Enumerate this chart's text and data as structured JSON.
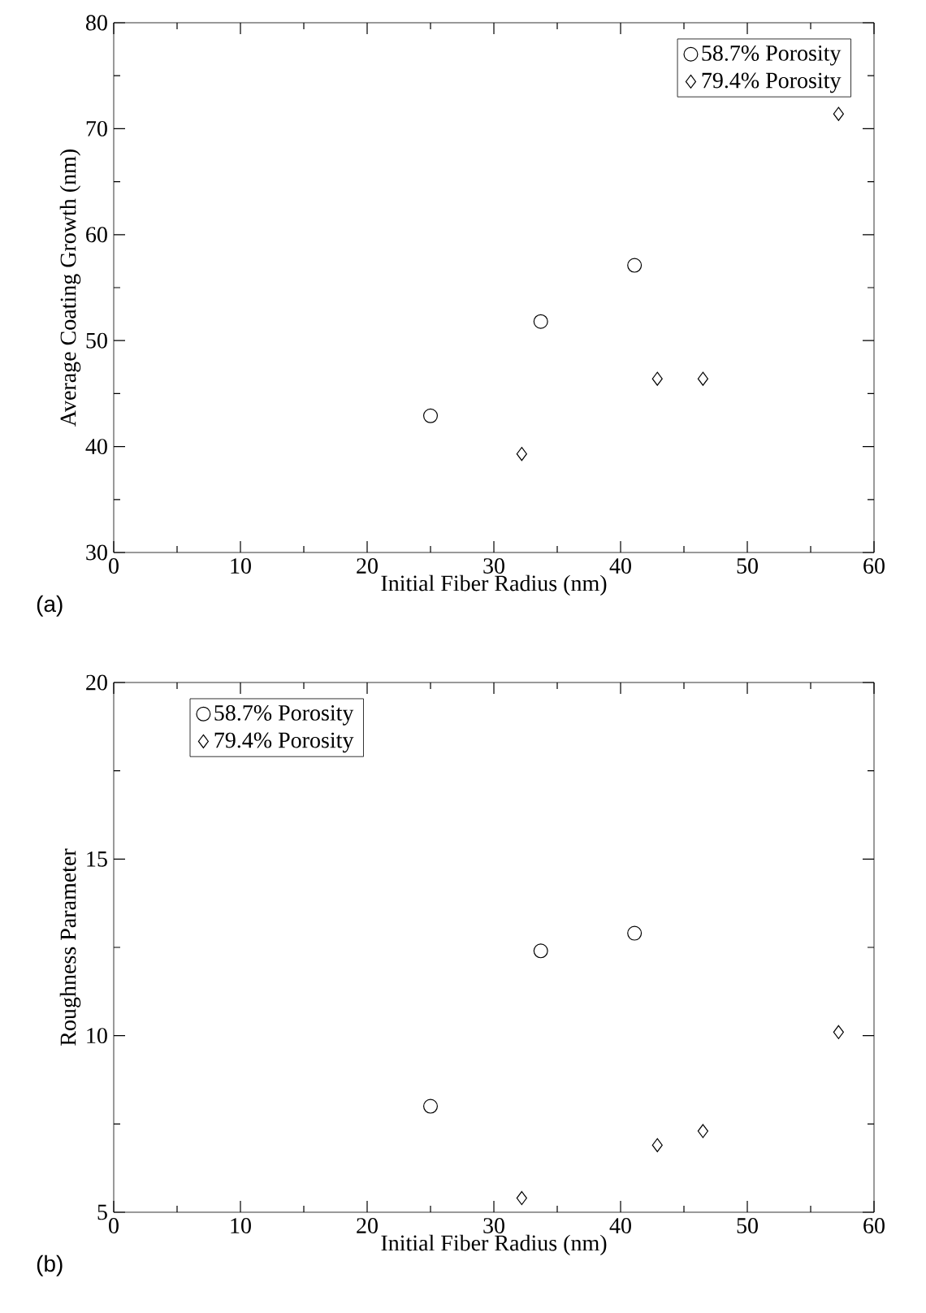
{
  "chart_data": [
    {
      "type": "scatter",
      "xlabel": "Initial Fiber Radius (nm)",
      "ylabel": "Average Coating Growth (nm)",
      "annotations": [
        "(a)"
      ],
      "xlim": [
        0,
        60
      ],
      "xticks": [
        0,
        10,
        20,
        30,
        40,
        50,
        60
      ],
      "ylim": [
        30,
        80
      ],
      "yticks": [
        30,
        40,
        50,
        60,
        70,
        80
      ],
      "legend": "top right",
      "grid": false,
      "series": [
        {
          "name": "58.7% Porosity",
          "color": "#000000",
          "marker": "circle",
          "x": [
            25,
            33.7,
            41.1
          ],
          "values": [
            42.9,
            51.8,
            57.1
          ]
        },
        {
          "name": "79.4% Porosity",
          "color": "#000000",
          "marker": "diamond",
          "x": [
            32.2,
            42.9,
            46.5,
            57.2
          ],
          "values": [
            39.3,
            46.4,
            46.4,
            71.4
          ]
        }
      ]
    },
    {
      "type": "scatter",
      "xlabel": "Initial Fiber Radius (nm)",
      "ylabel": "Roughness Parameter",
      "annotations": [
        "(b)"
      ],
      "xlim": [
        0,
        60
      ],
      "xticks": [
        0,
        10,
        20,
        30,
        40,
        50,
        60
      ],
      "ylim": [
        5,
        20
      ],
      "yticks": [
        5,
        10,
        15,
        20
      ],
      "legend": "top left",
      "grid": false,
      "series": [
        {
          "name": "58.7% Porosity",
          "color": "#000000",
          "marker": "circle",
          "x": [
            25,
            33.7,
            41.1
          ],
          "values": [
            8.0,
            12.4,
            12.9
          ]
        },
        {
          "name": "79.4% Porosity",
          "color": "#000000",
          "marker": "diamond",
          "x": [
            32.2,
            42.9,
            46.5,
            57.2
          ],
          "values": [
            5.4,
            6.9,
            7.3,
            10.1
          ]
        }
      ]
    }
  ]
}
